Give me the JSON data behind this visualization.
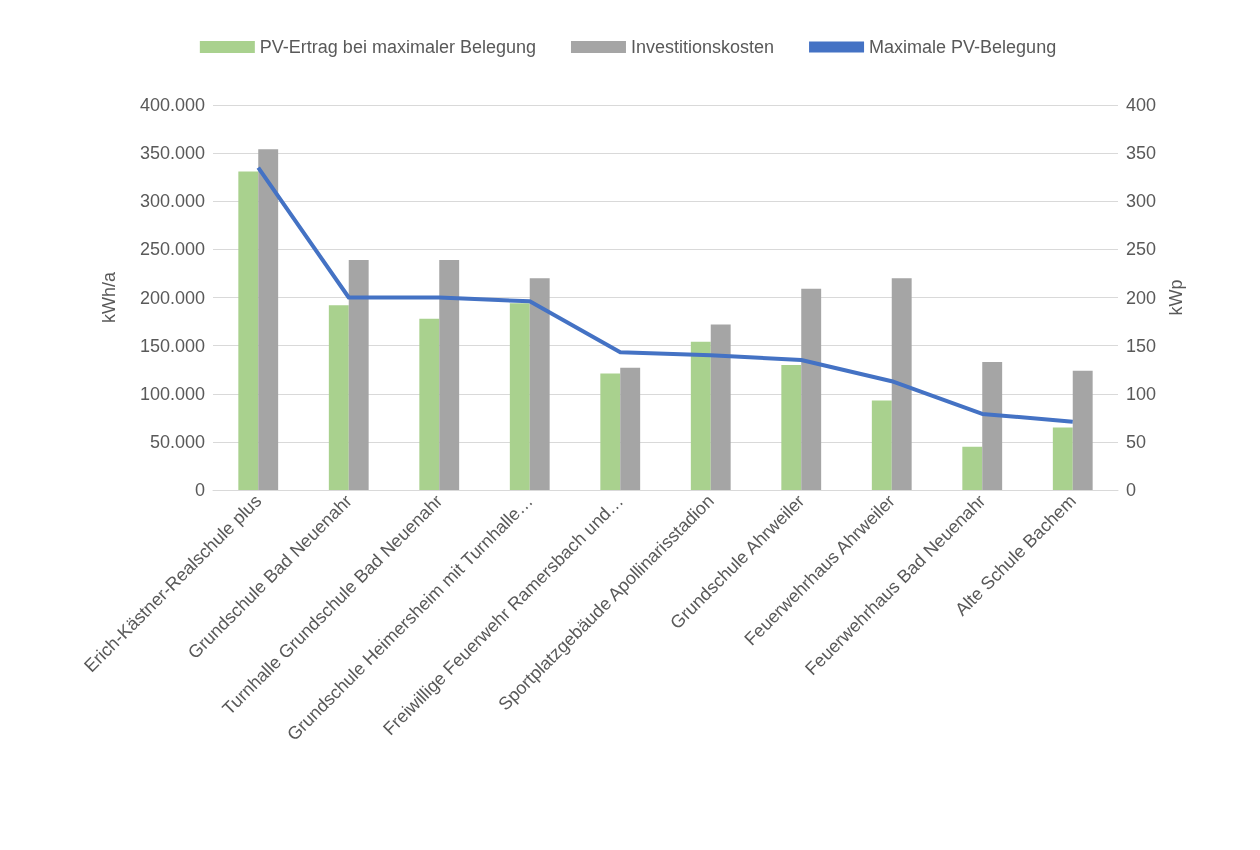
{
  "chart_data": {
    "type": "bar",
    "ylabel": "kWh/a",
    "y2label": "kWp",
    "categories": [
      "Erich-Kästner-Realschule plus",
      "Grundschule Bad Neuenahr",
      "Turnhalle Grundschule Bad Neuenahr",
      "Grundschule Heimersheim mit Turnhalle…",
      "Freiwillige Feuerwehr Ramersbach und…",
      "Sportplatzgebäude Apollinarisstadion",
      "Grundschule Ahrweiler",
      "Feuerwehrhaus Ahrweiler",
      "Feuerwehrhaus Bad Neuenahr",
      "Alte Schule Bachem"
    ],
    "series": [
      {
        "name": "PV-Ertrag bei maximaler Belegung",
        "color": "#a9d18e",
        "values": [
          331000,
          192000,
          178000,
          194000,
          121000,
          154000,
          130000,
          93000,
          45000,
          65000
        ]
      },
      {
        "name": "Investitionskosten",
        "color": "#a5a5a5",
        "values": [
          354000,
          239000,
          239000,
          220000,
          127000,
          172000,
          209000,
          220000,
          133000,
          124000
        ]
      },
      {
        "name": "Maximale PV-Belegung",
        "type": "line",
        "axis": "y2",
        "color": "#4472c4",
        "marker": "none",
        "values": [
          335,
          200,
          200,
          196,
          143,
          140,
          135,
          113,
          79,
          71
        ]
      }
    ],
    "ylim": [
      0,
      400000
    ],
    "yticks": [
      {
        "value": 0,
        "label": "0"
      },
      {
        "value": 50000,
        "label": "50.000"
      },
      {
        "value": 100000,
        "label": "100.000"
      },
      {
        "value": 150000,
        "label": "150.000"
      },
      {
        "value": 200000,
        "label": "200.000"
      },
      {
        "value": 250000,
        "label": "250.000"
      },
      {
        "value": 300000,
        "label": "300.000"
      },
      {
        "value": 350000,
        "label": "350.000"
      },
      {
        "value": 400000,
        "label": "400.000"
      }
    ],
    "y2lim": [
      0,
      400
    ],
    "y2ticks": [
      0,
      50,
      100,
      150,
      200,
      250,
      300,
      350,
      400
    ],
    "grid": "y",
    "legend": "top"
  }
}
